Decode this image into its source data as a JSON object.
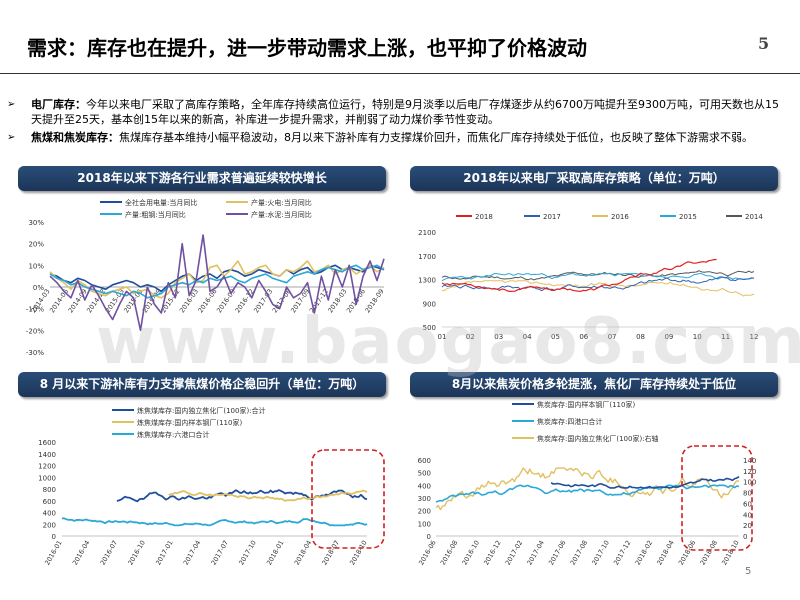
{
  "title": "需求：库存也在提升，进一步带动需求上涨，也平抑了价格波动",
  "page_number": "5",
  "bottom_page_number": "5",
  "bullets": [
    {
      "marker": "➢",
      "bold": "电厂库存：",
      "text": "今年以来电厂采取了高库存策略，全年库存持续高位运行，特别是9月淡季以后电厂存煤逐步从约6700万吨提升至9300万吨，可用天数也从15天提升至25天，基本创15年以来的新高，补库进一步提升需求，并削弱了动力煤价季节性变动。"
    },
    {
      "marker": "➢",
      "bold": "焦煤和焦炭库存：",
      "text": "焦煤库存基本维持小幅平稳波动，8月以来下游补库有力支撑煤价回升，而焦化厂库存持续处于低位，也反映了整体下游需求不弱。"
    }
  ],
  "watermark": "www.baogao8.com",
  "panels": [
    {
      "title": "2018年以来下游各行业需求普遍延续较快增长"
    },
    {
      "title": "2018年以来电厂采取高库存策略（单位：万吨）"
    },
    {
      "title": "8 月以来下游补库有力支撑焦煤价格企稳回升（单位：万吨）"
    },
    {
      "title": "8月以来焦炭价格多轮提涨，焦化厂库存持续处于低位"
    }
  ],
  "chart_data": [
    {
      "type": "line",
      "legend": [
        "全社会用电量:当月同比",
        "产量:火电:当月同比",
        "产量:粗钢:当月同比",
        "产量:水泥:当月同比"
      ],
      "colors": [
        "#1f4e9c",
        "#e0c060",
        "#2aa8d8",
        "#7050a0"
      ],
      "ylim": [
        -30,
        30
      ],
      "yticks": [
        "30%",
        "20%",
        "10%",
        "0%",
        "-10%",
        "-20%",
        "-30%"
      ],
      "xticks": [
        "2014-03",
        "2014-06",
        "2014-09",
        "2014-12",
        "2015-03",
        "2015-06",
        "2015-09",
        "2015-12",
        "2016-03",
        "2016-06",
        "2016-09",
        "2016-12",
        "2017-03",
        "2017-06",
        "2017-09",
        "2017-12",
        "2018-03",
        "2018-06",
        "2018-09"
      ],
      "series": [
        {
          "name": "全社会用电量:当月同比",
          "values": [
            6,
            5,
            3,
            2,
            4,
            3,
            1,
            0,
            -1,
            1,
            2,
            3,
            2,
            0,
            1,
            0,
            -2,
            1,
            3,
            5,
            6,
            3,
            5,
            6,
            4,
            7,
            8,
            7,
            5,
            6,
            8,
            7,
            6,
            5,
            8,
            6,
            8,
            9,
            6,
            7,
            9,
            10,
            8,
            9,
            8,
            7,
            10,
            9,
            8
          ]
        },
        {
          "name": "产量:火电:当月同比",
          "values": [
            7,
            4,
            2,
            -1,
            3,
            1,
            -2,
            -3,
            -4,
            -2,
            -1,
            0,
            -3,
            -2,
            -1,
            -4,
            -5,
            -3,
            2,
            4,
            6,
            2,
            3,
            9,
            10,
            5,
            8,
            12,
            6,
            7,
            9,
            10,
            6,
            5,
            8,
            7,
            9,
            12,
            7,
            8,
            10,
            6,
            8,
            9,
            6,
            8,
            10,
            7,
            9
          ]
        },
        {
          "name": "产量:粗钢:当月同比",
          "values": [
            6,
            4,
            3,
            1,
            2,
            0,
            -1,
            -2,
            -3,
            -2,
            -3,
            -4,
            -2,
            -3,
            -5,
            -4,
            -3,
            0,
            1,
            2,
            1,
            3,
            2,
            4,
            3,
            4,
            5,
            3,
            2,
            4,
            5,
            6,
            4,
            3,
            2,
            5,
            6,
            7,
            6,
            8,
            9,
            8,
            7,
            9,
            10,
            8,
            9,
            10,
            8
          ]
        },
        {
          "name": "产量:水泥:当月同比",
          "values": [
            5,
            2,
            -2,
            -5,
            3,
            -6,
            1,
            -4,
            -10,
            -15,
            -8,
            -2,
            -5,
            -20,
            0,
            -8,
            -12,
            2,
            -5,
            20,
            -4,
            3,
            24,
            -2,
            0,
            5,
            -3,
            2,
            0,
            -5,
            3,
            -2,
            -8,
            -10,
            0,
            -5,
            -3,
            2,
            -12,
            5,
            -6,
            8,
            0,
            10,
            -8,
            5,
            12,
            3,
            13
          ]
        }
      ]
    },
    {
      "type": "line",
      "legend": [
        "2018",
        "2017",
        "2016",
        "2015",
        "2014"
      ],
      "colors": [
        "#e02020",
        "#3060b0",
        "#e0c060",
        "#2aa8d8",
        "#555555"
      ],
      "ylim": [
        500,
        2100
      ],
      "yticks": [
        "2100",
        "1700",
        "1300",
        "900",
        "500"
      ],
      "xticks": [
        "01",
        "02",
        "03",
        "04",
        "05",
        "06",
        "07",
        "08",
        "09",
        "10",
        "11",
        "12"
      ]
    },
    {
      "type": "line",
      "legend": [
        "炼焦煤库存:国内独立焦化厂(100家):合计",
        "炼焦煤库存:国内样本钢厂(110家)",
        "炼焦煤库存:六港口合计"
      ],
      "colors": [
        "#1f4e9c",
        "#e0c060",
        "#2aa8d8"
      ],
      "ylim": [
        0,
        1600
      ],
      "yticks": [
        "1600",
        "1400",
        "1200",
        "1000",
        "800",
        "600",
        "400",
        "200",
        "0"
      ],
      "xticks": [
        "2016-01",
        "2016-04",
        "2016-07",
        "2016-10",
        "2017-01",
        "2017-04",
        "2017-07",
        "2017-10",
        "2018-01",
        "2018-04",
        "2018-07",
        "2018-10"
      ]
    },
    {
      "type": "line",
      "legend": [
        "焦炭库存:国内样本钢厂(110家)",
        "焦炭库存:四港口合计",
        "焦炭库存:国内独立焦化厂(100家):右轴"
      ],
      "colors": [
        "#1f4e9c",
        "#2aa8d8",
        "#e0c060"
      ],
      "ylim": [
        0,
        600
      ],
      "ylim_right": [
        0,
        140
      ],
      "yticks": [
        "600",
        "500",
        "400",
        "300",
        "200",
        "100",
        "0"
      ],
      "yticks_right": [
        "140",
        "120",
        "100",
        "80",
        "60",
        "40",
        "20",
        "0"
      ],
      "xticks": [
        "2016-06",
        "2016-08",
        "2016-10",
        "2016-12",
        "2017-02",
        "2017-04",
        "2017-06",
        "2017-08",
        "2017-10",
        "2017-12",
        "2018-02",
        "2018-04",
        "2018-06",
        "2018-08",
        "2018-10"
      ]
    }
  ]
}
